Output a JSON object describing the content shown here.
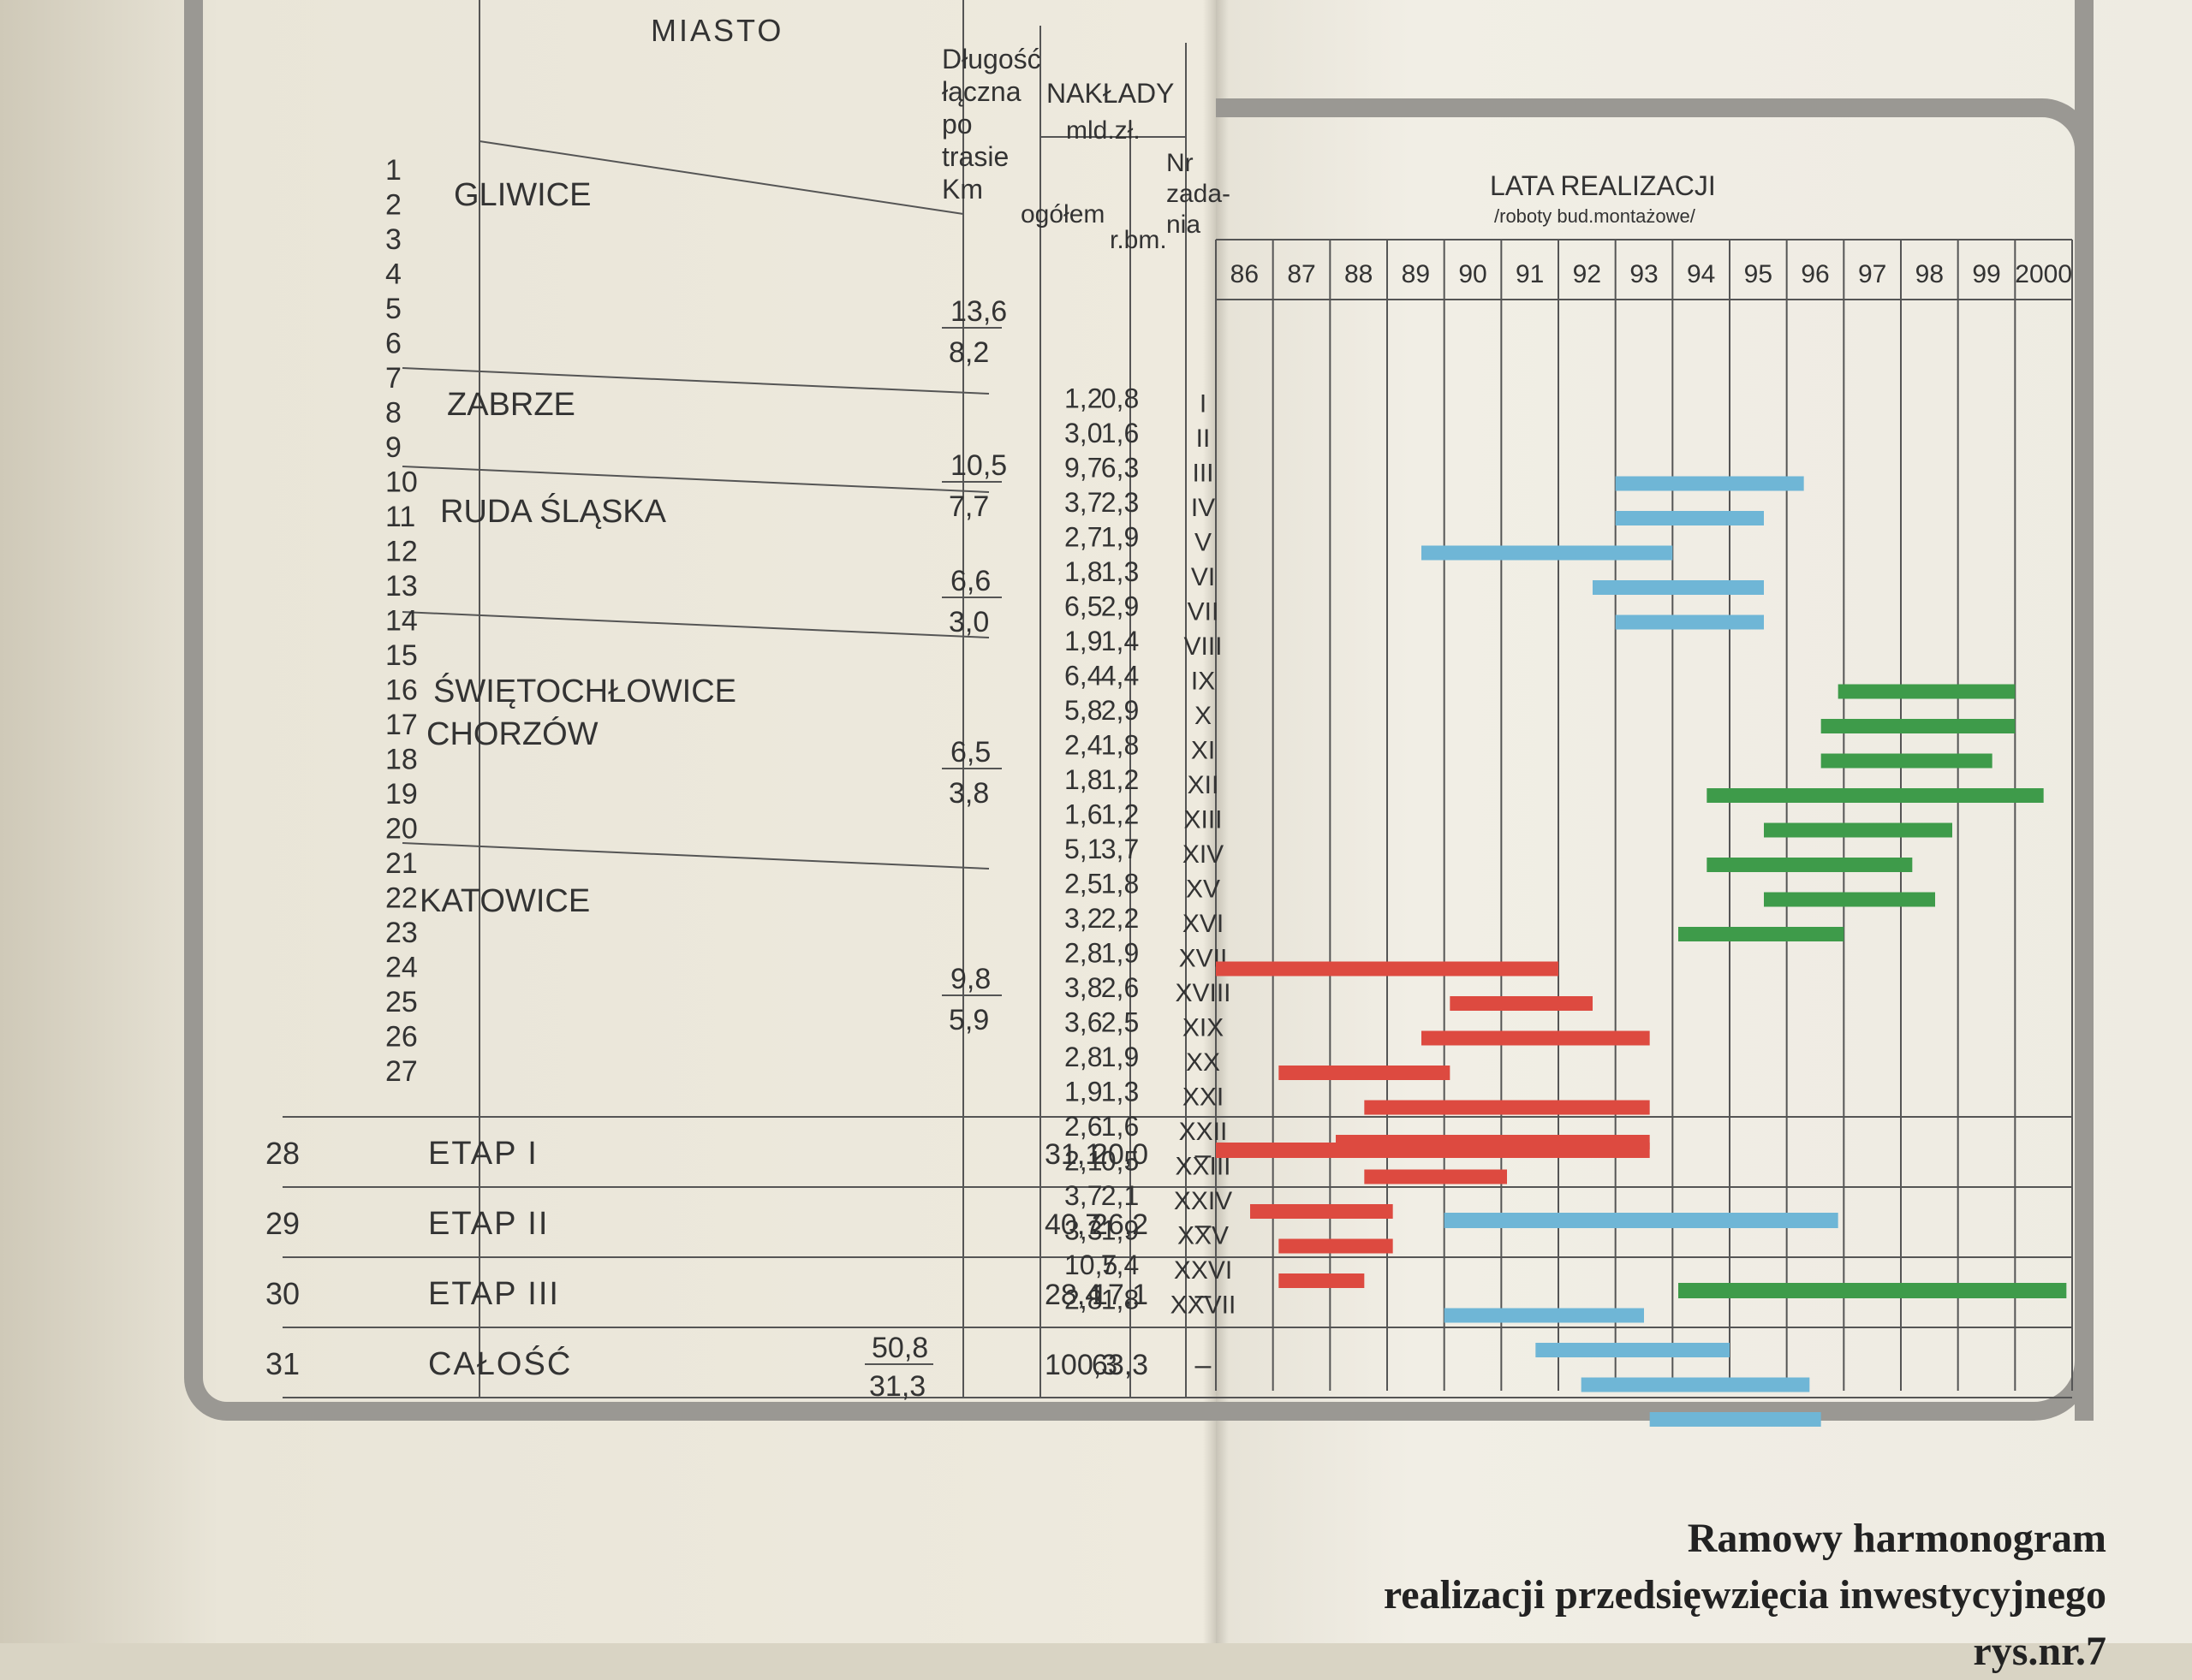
{
  "headers": {
    "miasto": "MIASTO",
    "dlugosc": [
      "Długość",
      "łączna",
      "po",
      "trasie",
      "Km"
    ],
    "naklady": [
      "NAKŁADY",
      "mld.zł."
    ],
    "ogolem": "ogółem",
    "rbm": "r.bm.",
    "nr_zadania": [
      "Nr",
      "zada-",
      "nia"
    ],
    "lata": "LATA REALIZACJI",
    "lata_sub": "/roboty bud.montażowe/"
  },
  "years": [
    "86",
    "87",
    "88",
    "89",
    "90",
    "91",
    "92",
    "93",
    "94",
    "95",
    "96",
    "97",
    "98",
    "99",
    "2000"
  ],
  "cities": [
    "GLIWICE",
    "ZABRZE",
    "RUDA ŚLĄSKA",
    "ŚWIĘTOCHŁOWICE",
    "CHORZÓW",
    "KATOWICE"
  ],
  "lengths": [
    {
      "top": "13,6",
      "bottom": "8,2"
    },
    {
      "top": "10,5",
      "bottom": "7,7"
    },
    {
      "top": "6,6",
      "bottom": "3,0"
    },
    {
      "top": "6,5",
      "bottom": "3,8"
    },
    {
      "top": "9,8",
      "bottom": "5,9"
    }
  ],
  "tasks": [
    {
      "n": "1",
      "ogolem": "",
      "rbm": "",
      "nr": ""
    },
    {
      "n": "2",
      "ogolem": "",
      "rbm": "",
      "nr": ""
    },
    {
      "n": "3",
      "ogolem": "",
      "rbm": "",
      "nr": ""
    },
    {
      "n": "4",
      "ogolem": "1,2",
      "rbm": "0,8",
      "nr": "I"
    },
    {
      "n": "5",
      "ogolem": "3,0",
      "rbm": "1,6",
      "nr": "II"
    },
    {
      "n": "6",
      "ogolem": "9,7",
      "rbm": "6,3",
      "nr": "III"
    },
    {
      "n": "7",
      "ogolem": "3,7",
      "rbm": "2,3",
      "nr": "IV"
    },
    {
      "n": "8",
      "ogolem": "2,7",
      "rbm": "1,9",
      "nr": "V"
    },
    {
      "n": "9",
      "ogolem": "1,8",
      "rbm": "1,3",
      "nr": "VI"
    },
    {
      "n": "10",
      "ogolem": "6,5",
      "rbm": "2,9",
      "nr": "VII"
    },
    {
      "n": "11",
      "ogolem": "1,9",
      "rbm": "1,4",
      "nr": "VIII"
    },
    {
      "n": "12",
      "ogolem": "6,4",
      "rbm": "4,4",
      "nr": "IX"
    },
    {
      "n": "13",
      "ogolem": "5,8",
      "rbm": "2,9",
      "nr": "X"
    },
    {
      "n": "14",
      "ogolem": "2,4",
      "rbm": "1,8",
      "nr": "XI"
    },
    {
      "n": "15",
      "ogolem": "1,8",
      "rbm": "1,2",
      "nr": "XII"
    },
    {
      "n": "16",
      "ogolem": "1,6",
      "rbm": "1,2",
      "nr": "XIII"
    },
    {
      "n": "17",
      "ogolem": "5,1",
      "rbm": "3,7",
      "nr": "XIV"
    },
    {
      "n": "18",
      "ogolem": "2,5",
      "rbm": "1,8",
      "nr": "XV"
    },
    {
      "n": "19",
      "ogolem": "3,2",
      "rbm": "2,2",
      "nr": "XVI"
    },
    {
      "n": "20",
      "ogolem": "2,8",
      "rbm": "1,9",
      "nr": "XVII"
    },
    {
      "n": "21",
      "ogolem": "3,8",
      "rbm": "2,6",
      "nr": "XVIII"
    },
    {
      "n": "22",
      "ogolem": "3,6",
      "rbm": "2,5",
      "nr": "XIX"
    },
    {
      "n": "23",
      "ogolem": "2,8",
      "rbm": "1,9",
      "nr": "XX"
    },
    {
      "n": "24",
      "ogolem": "1,9",
      "rbm": "1,3",
      "nr": "XXI"
    },
    {
      "n": "25",
      "ogolem": "2,6",
      "rbm": "1,6",
      "nr": "XXII"
    },
    {
      "n": "26",
      "ogolem": "2,1",
      "rbm": "0,5",
      "nr": "XXIII"
    },
    {
      "n": "27",
      "ogolem": "3,7",
      "rbm": "2,1",
      "nr": "XXIV"
    },
    {
      "n": "",
      "ogolem": "3,3",
      "rbm": "1,9",
      "nr": "XXV"
    },
    {
      "n": "",
      "ogolem": "10,5",
      "rbm": "7,4",
      "nr": "XXVI"
    },
    {
      "n": "",
      "ogolem": "2,8",
      "rbm": "1,8",
      "nr": "XXVII"
    }
  ],
  "bars": [
    {
      "row": 4,
      "start": 93.0,
      "end": 96.3,
      "color": "#6fb6d6"
    },
    {
      "row": 5,
      "start": 93.0,
      "end": 95.6,
      "color": "#6fb6d6"
    },
    {
      "row": 6,
      "start": 89.6,
      "end": 94.0,
      "color": "#6fb6d6"
    },
    {
      "row": 7,
      "start": 92.6,
      "end": 95.6,
      "color": "#6fb6d6"
    },
    {
      "row": 8,
      "start": 93.0,
      "end": 95.6,
      "color": "#6fb6d6"
    },
    {
      "row": 10,
      "start": 96.9,
      "end": 100.0,
      "color": "#3e9b4a"
    },
    {
      "row": 11,
      "start": 96.6,
      "end": 100.0,
      "color": "#3e9b4a"
    },
    {
      "row": 12,
      "start": 96.6,
      "end": 99.6,
      "color": "#3e9b4a"
    },
    {
      "row": 13,
      "start": 94.6,
      "end": 100.5,
      "color": "#3e9b4a"
    },
    {
      "row": 14,
      "start": 95.6,
      "end": 98.9,
      "color": "#3e9b4a"
    },
    {
      "row": 15,
      "start": 94.6,
      "end": 98.2,
      "color": "#3e9b4a"
    },
    {
      "row": 16,
      "start": 95.6,
      "end": 98.6,
      "color": "#3e9b4a"
    },
    {
      "row": 17,
      "start": 94.1,
      "end": 97.0,
      "color": "#3e9b4a"
    },
    {
      "row": 18,
      "start": 86.0,
      "end": 92.0,
      "color": "#dd4a40"
    },
    {
      "row": 19,
      "start": 90.1,
      "end": 92.6,
      "color": "#dd4a40"
    },
    {
      "row": 20,
      "start": 89.6,
      "end": 93.6,
      "color": "#dd4a40"
    },
    {
      "row": 21,
      "start": 87.1,
      "end": 90.1,
      "color": "#dd4a40"
    },
    {
      "row": 22,
      "start": 88.6,
      "end": 93.6,
      "color": "#dd4a40"
    },
    {
      "row": 23,
      "start": 88.1,
      "end": 93.6,
      "color": "#dd4a40"
    },
    {
      "row": 24,
      "start": 88.6,
      "end": 91.1,
      "color": "#dd4a40"
    },
    {
      "row": 25,
      "start": 86.6,
      "end": 89.1,
      "color": "#dd4a40"
    },
    {
      "row": 26,
      "start": 87.1,
      "end": 89.1,
      "color": "#dd4a40"
    },
    {
      "row": 27,
      "start": 87.1,
      "end": 88.6,
      "color": "#dd4a40"
    },
    {
      "row": 28,
      "start": 90.0,
      "end": 93.5,
      "color": "#6fb6d6"
    },
    {
      "row": 29,
      "start": 91.6,
      "end": 95.0,
      "color": "#6fb6d6"
    },
    {
      "row": 30,
      "start": 92.4,
      "end": 96.4,
      "color": "#6fb6d6"
    },
    {
      "row": 31,
      "start": 93.6,
      "end": 96.6,
      "color": "#6fb6d6"
    }
  ],
  "summary": [
    {
      "n": "28",
      "label": "ETAP I",
      "ogolem": "31,1",
      "rbm": "20,0",
      "nr": "–",
      "start": 86.0,
      "end": 93.6,
      "color": "#dd4a40"
    },
    {
      "n": "29",
      "label": "ETAP II",
      "ogolem": "40,7",
      "rbm": "26,2",
      "nr": "–",
      "start": 90.0,
      "end": 96.9,
      "color": "#6fb6d6"
    },
    {
      "n": "30",
      "label": "ETAP III",
      "ogolem": "28,4",
      "rbm": "17,1",
      "nr": "–",
      "start": 94.1,
      "end": 100.9,
      "color": "#3e9b4a"
    },
    {
      "n": "31",
      "label": "CAŁOŚĆ",
      "ogolem": "100,3",
      "rbm": "63,3",
      "nr": "–",
      "len_top": "50,8",
      "len_bottom": "31,3"
    }
  ],
  "caption": [
    "Ramowy harmonogram",
    "realizacji przedsięwzięcia inwestycyjnego",
    "rys.nr.7"
  ]
}
